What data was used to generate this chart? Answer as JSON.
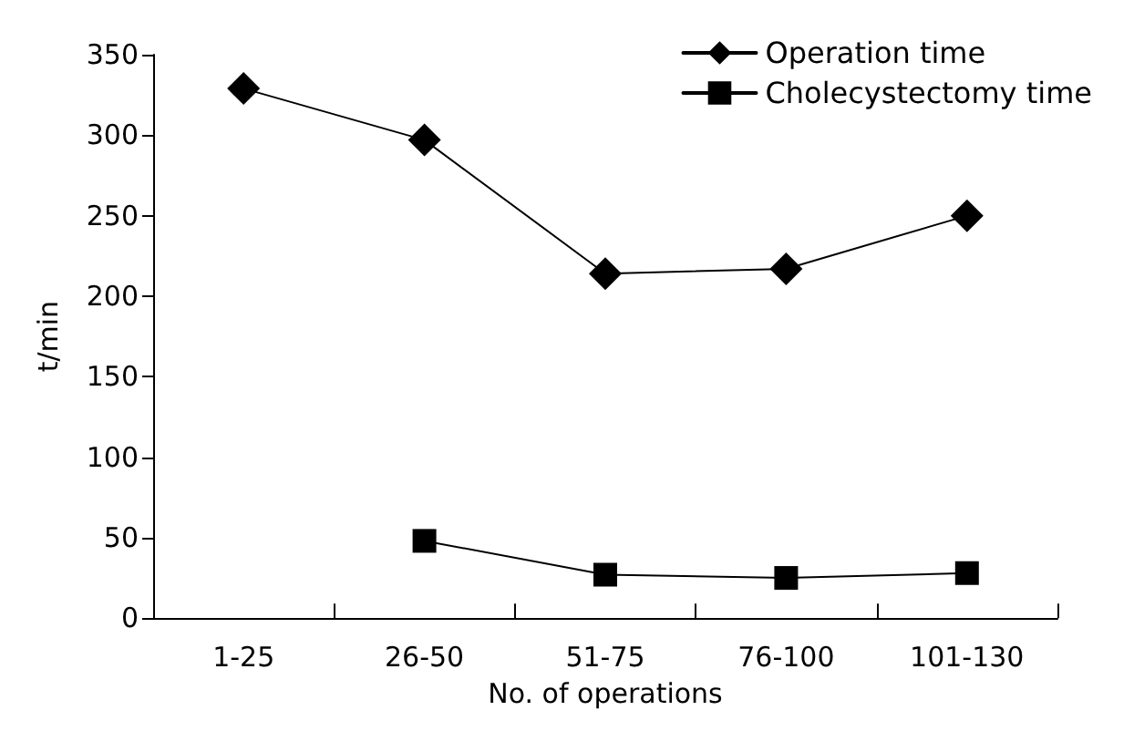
{
  "chart_data": {
    "type": "line",
    "xlabel": "No. of operations",
    "ylabel": "t/min",
    "categories": [
      "1-25",
      "26-50",
      "51-75",
      "76-100",
      "101-130"
    ],
    "series": [
      {
        "name": "Operation time",
        "color": "#000000",
        "marker": "diamond",
        "values": [
          329,
          297,
          214,
          217,
          250
        ]
      },
      {
        "name": "Cholecystectomy time",
        "color": "#000000",
        "marker": "square",
        "values": [
          null,
          48,
          27,
          25,
          28
        ]
      }
    ],
    "ylim": [
      0,
      350
    ],
    "yticks": [
      0,
      50,
      100,
      150,
      200,
      250,
      300,
      350
    ],
    "grid": false,
    "legend": "top right",
    "line_style": "solid"
  }
}
